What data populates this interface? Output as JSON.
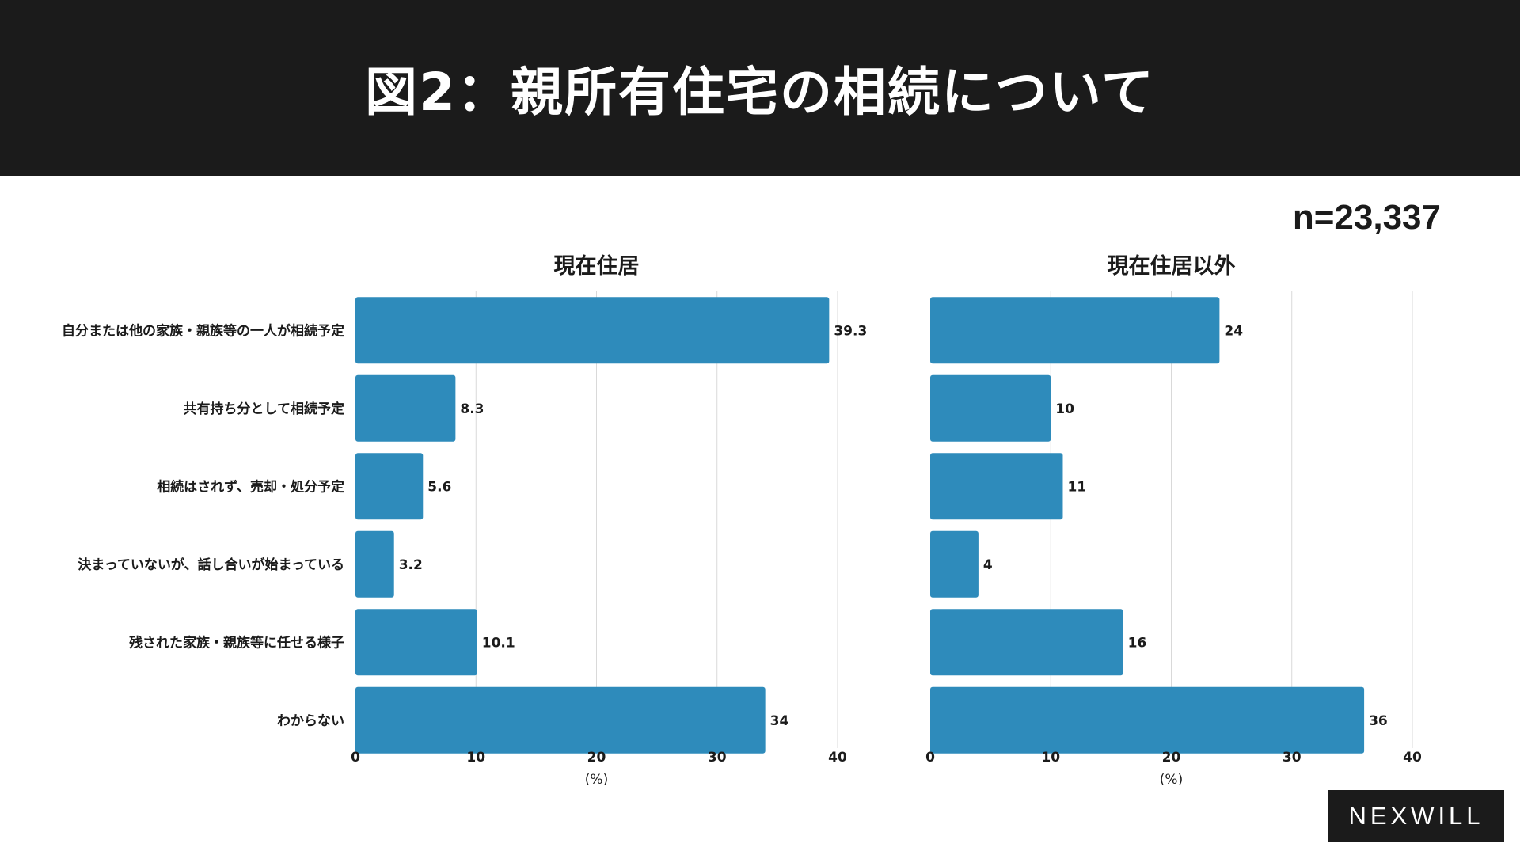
{
  "header": {
    "title": "図2：親所有住宅の相続について"
  },
  "sample_size": "n=23,337",
  "logo": {
    "text": "NEXWILL"
  },
  "colors": {
    "bar": "#2e8bbb",
    "header_bg": "#1b1b1b",
    "grid": "#d9d9d9",
    "text": "#1b1b1b"
  },
  "chart_data": [
    {
      "type": "bar",
      "orientation": "horizontal",
      "title": "現在住居",
      "categories": [
        "自分または他の家族・親族等の一人が相続予定",
        "共有持ち分として相続予定",
        "相続はされず、売却・処分予定",
        "決まっていないが、話し合いが始まっている",
        "残された家族・親族等に任せる様子",
        "わからない"
      ],
      "values": [
        39.3,
        8.3,
        5.6,
        3.2,
        10.1,
        34
      ],
      "value_labels": [
        "39.3",
        "8.3",
        "5.6",
        "3.2",
        "10.1",
        "34"
      ],
      "xlim": [
        0,
        40
      ],
      "xticks": [
        "0",
        "10",
        "20",
        "30",
        "40"
      ],
      "xlabel": "(%)",
      "grid": true
    },
    {
      "type": "bar",
      "orientation": "horizontal",
      "title": "現在住居以外",
      "categories": [
        "自分または他の家族・親族等の一人が相続予定",
        "共有持ち分として相続予定",
        "相続はされず、売却・処分予定",
        "決まっていないが、話し合いが始まっている",
        "残された家族・親族等に任せる様子",
        "わからない"
      ],
      "values": [
        24,
        10,
        11,
        4,
        16,
        36
      ],
      "value_labels": [
        "24",
        "10",
        "11",
        "4",
        "16",
        "36"
      ],
      "xlim": [
        0,
        40
      ],
      "xticks": [
        "0",
        "10",
        "20",
        "30",
        "40"
      ],
      "xlabel": "(%)",
      "grid": true
    }
  ]
}
